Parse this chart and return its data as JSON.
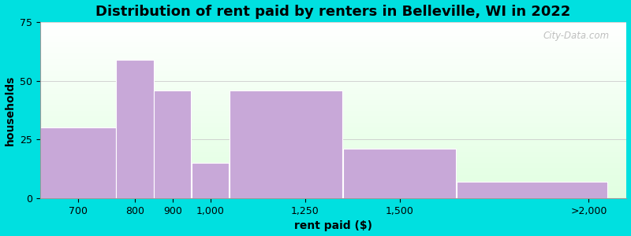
{
  "title": "Distribution of rent paid by renters in Belleville, WI in 2022",
  "xlabel": "rent paid ($)",
  "ylabel": "households",
  "bar_lefts": [
    550,
    750,
    850,
    950,
    1050,
    1350,
    1650
  ],
  "bar_widths": [
    200,
    100,
    100,
    100,
    300,
    300,
    400
  ],
  "values": [
    30,
    59,
    46,
    15,
    46,
    21,
    7
  ],
  "xtick_positions": [
    650,
    800,
    900,
    1000,
    1250,
    1500,
    2000
  ],
  "xtick_labels": [
    "700",
    "800",
    "900",
    "1,000",
    "1,250",
    "1,500",
    ">2,000"
  ],
  "bar_color": "#c8a8d8",
  "bar_edgecolor": "#ffffff",
  "background_outer": "#00e0e0",
  "ylim": [
    0,
    75
  ],
  "xlim": [
    550,
    2100
  ],
  "yticks": [
    0,
    25,
    50,
    75
  ],
  "title_fontsize": 13,
  "axis_label_fontsize": 10,
  "tick_fontsize": 9,
  "watermark": "City-Data.com"
}
